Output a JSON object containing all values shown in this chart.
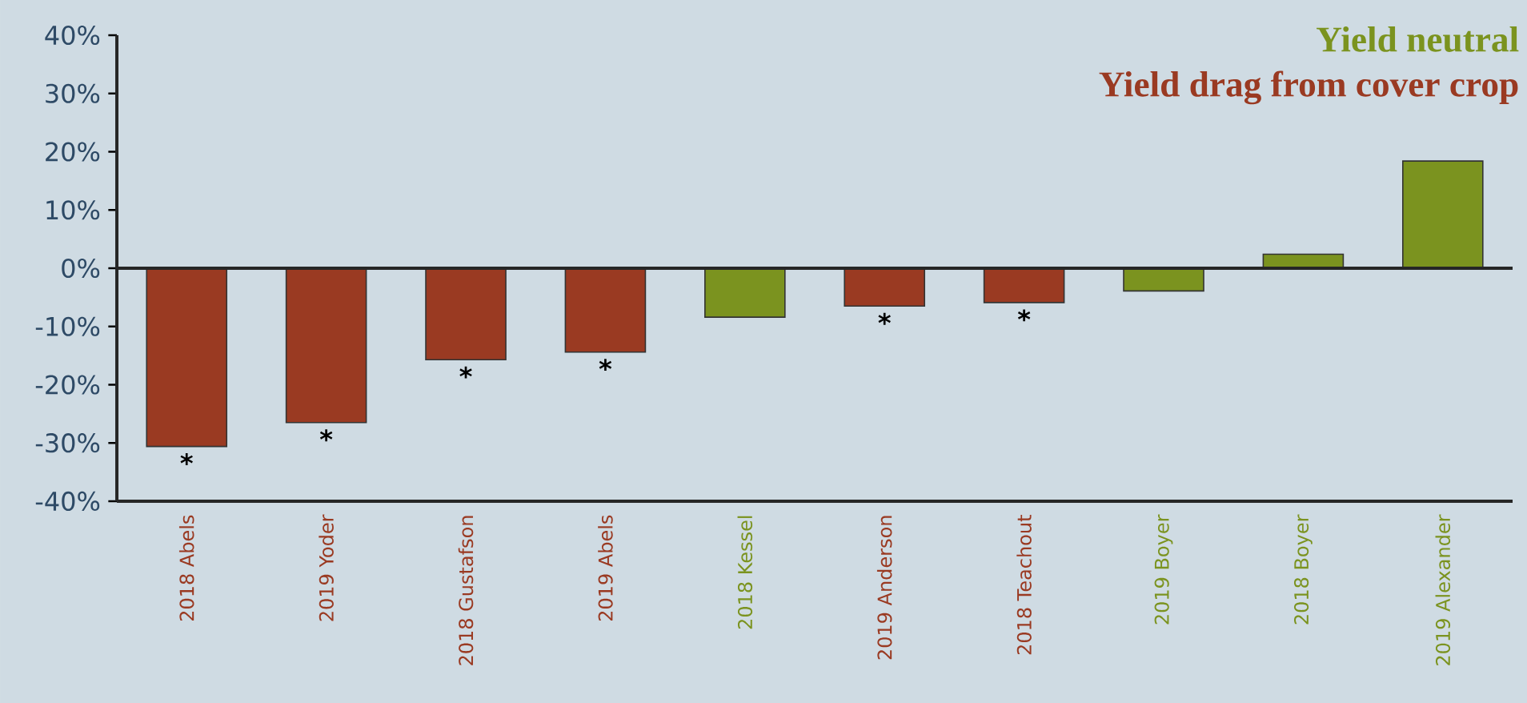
{
  "chart_data": {
    "type": "bar",
    "categories": [
      "2018 Abels",
      "2019 Yoder",
      "2018 Gustafson",
      "2019 Abels",
      "2018 Kessel",
      "2019 Anderson",
      "2018 Teachout",
      "2019 Boyer",
      "2018 Boyer",
      "2019 Alexander"
    ],
    "series": [
      {
        "name": "Yield neutral",
        "color": "#7b931f",
        "values": [
          null,
          null,
          null,
          null,
          -8.4,
          null,
          null,
          -3.9,
          2.4,
          18.4
        ]
      },
      {
        "name": "Yield drag from cover crop",
        "color": "#9a3a22",
        "values": [
          -30.6,
          -26.5,
          -15.7,
          -14.4,
          null,
          -6.5,
          -5.9,
          null,
          null,
          null
        ]
      }
    ],
    "ylim": [
      -40,
      40
    ],
    "yticks": [
      {
        "value": -40,
        "label": "-40%"
      },
      {
        "value": -30,
        "label": "-30%"
      },
      {
        "value": -20,
        "label": "-20%"
      },
      {
        "value": -10,
        "label": "-10%"
      },
      {
        "value": 0,
        "label": "0%"
      },
      {
        "value": 10,
        "label": "10%"
      },
      {
        "value": 20,
        "label": "20%"
      },
      {
        "value": 30,
        "label": "30%"
      },
      {
        "value": 40,
        "label": "40%"
      }
    ],
    "legend": "top right",
    "annotations": [
      {
        "text": "*",
        "x": "2018 Abels",
        "y": -30.6
      },
      {
        "text": "*",
        "x": "2019 Yoder",
        "y": -26.5
      },
      {
        "text": "*",
        "x": "2018 Gustafson",
        "y": -15.7
      },
      {
        "text": "*",
        "x": "2019 Abels",
        "y": -14.4
      },
      {
        "text": "*",
        "x": "2019 Anderson",
        "y": -6.5
      },
      {
        "text": "*",
        "x": "2018 Teachout",
        "y": -5.9
      }
    ]
  }
}
